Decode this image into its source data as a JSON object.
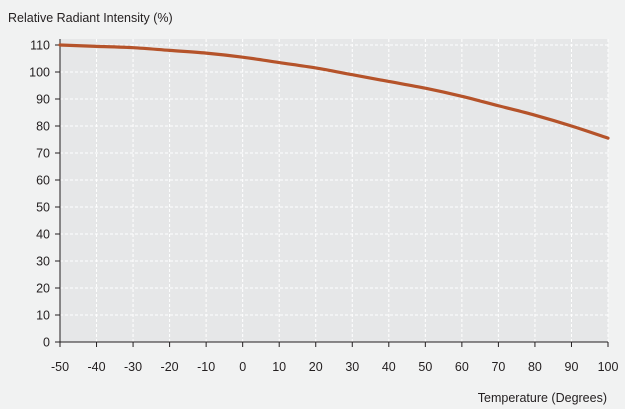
{
  "chart_data": {
    "type": "line",
    "title": "",
    "ylabel": "Relative Radiant Intensity (%)",
    "xlabel": "Temperature (Degrees)",
    "xlim": [
      -50,
      100
    ],
    "ylim": [
      0,
      110
    ],
    "x_ticks": [
      -50,
      -40,
      -30,
      -20,
      -10,
      0,
      10,
      20,
      30,
      40,
      50,
      60,
      70,
      80,
      90,
      100
    ],
    "y_ticks": [
      0,
      10,
      20,
      30,
      40,
      50,
      60,
      70,
      80,
      90,
      100,
      110
    ],
    "grid": true,
    "series": [
      {
        "color": "#b5532a",
        "x": [
          -50,
          -40,
          -30,
          -20,
          -10,
          0,
          10,
          20,
          30,
          40,
          50,
          60,
          70,
          80,
          90,
          100
        ],
        "y": [
          110,
          109.5,
          109,
          108,
          107,
          105.5,
          103.5,
          101.5,
          99,
          96.5,
          94,
          91,
          87.5,
          84,
          80,
          75.5
        ]
      }
    ]
  }
}
